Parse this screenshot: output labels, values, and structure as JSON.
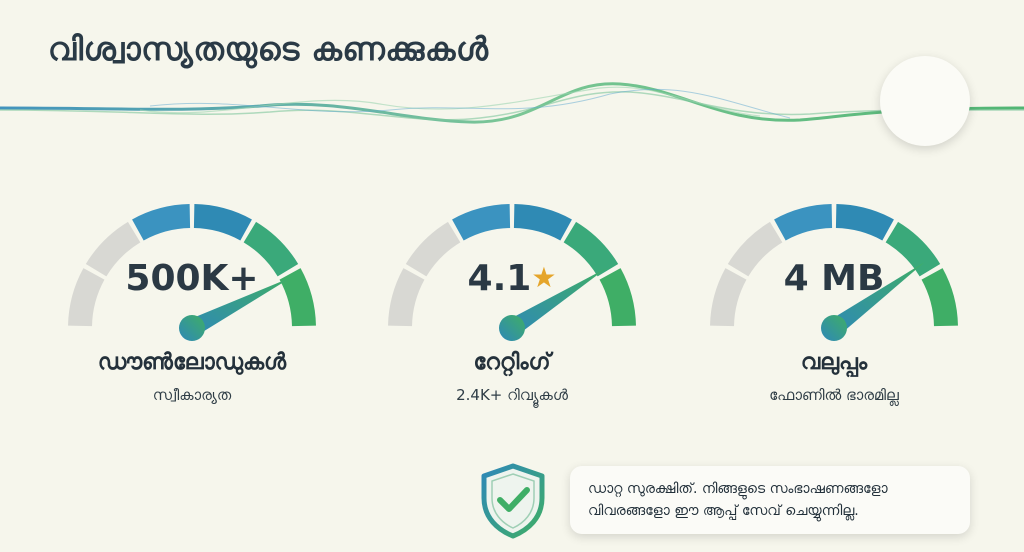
{
  "page": {
    "title": "വിശ്വാസ്യതയുടെ കണക്കുകൾ"
  },
  "colors": {
    "accent_blue": "#2e88b8",
    "accent_green": "#3fae66",
    "arc_gray": "#d6d6d2"
  },
  "gauges": [
    {
      "value": "500K+",
      "label": "ഡൗൺലോഡുകൾ",
      "sub": "സ്വീകാര്യത",
      "level": 0.85
    },
    {
      "value": "4.1",
      "star": "★",
      "label": "റേറ്റിംഗ്",
      "sub": "2.4K+ റിവ്യൂകൾ",
      "level": 0.82
    },
    {
      "value": "4 MB",
      "label": "വലുപ്പം",
      "sub": "ഫോണിൽ ഭാരമില്ല",
      "level": 0.8
    }
  ],
  "notice": {
    "icon": "shield-check-icon",
    "line1": "ഡാറ്റ സുരക്ഷിത്. നിങ്ങളുടെ സംഭാഷണങ്ങളോ",
    "line2": "വിവരങ്ങളോ ഈ ആപ്പ് സേവ് ചെയ്യുന്നില്ല."
  }
}
